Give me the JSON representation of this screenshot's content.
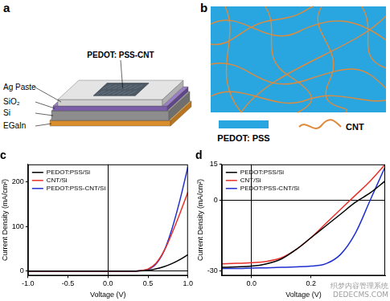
{
  "panels": {
    "a": {
      "label": "a",
      "layers": [
        "PEDOT: PSS-CNT",
        "Ag Paste",
        "SiO₂",
        "Si",
        "EGaIn"
      ]
    },
    "b": {
      "label": "b",
      "legend": [
        "PEDOT: PSS",
        "CNT"
      ]
    }
  },
  "chart_data": [
    {
      "type": "line",
      "title": "c",
      "x_label": "Voltage (V)",
      "y_label": "Current Density (mA/cm²)",
      "x": [
        -1,
        -0.5,
        0,
        0.3,
        0.4,
        0.5,
        0.6,
        0.7,
        0.8,
        0.9,
        1.0
      ],
      "series": [
        {
          "name": "PEDOT:PSS/Si",
          "color": "#000000",
          "values": [
            0,
            0,
            0,
            0,
            0.5,
            2,
            5,
            10,
            17,
            26,
            37
          ]
        },
        {
          "name": "CNT/Si",
          "color": "#e8302a",
          "values": [
            0,
            0,
            0,
            0,
            1,
            5,
            18,
            45,
            85,
            130,
            178
          ]
        },
        {
          "name": "PEDOT:PSS-CNT/Si",
          "color": "#1f2fd0",
          "values": [
            0,
            0,
            0,
            0,
            1,
            4,
            16,
            45,
            95,
            160,
            235
          ]
        }
      ],
      "xlim": [
        -1,
        1
      ],
      "xticks": [
        {
          "value": -1,
          "label": "-1.0"
        },
        {
          "value": -0.5,
          "label": "-0.5"
        },
        {
          "value": 0,
          "label": "0.0"
        },
        {
          "value": 0.5,
          "label": "0.5"
        },
        {
          "value": 1,
          "label": "1.0"
        }
      ],
      "ylim": [
        -10,
        240
      ],
      "yticks": [
        0,
        100,
        200
      ],
      "grid": false,
      "legend": "upper left",
      "marker": "none",
      "line_style": "solid"
    },
    {
      "type": "line",
      "title": "d",
      "x_label": "Voltage (V)",
      "y_label": "Current Density (mA/cm²)",
      "x": [
        -0.1,
        -0.05,
        0,
        0.05,
        0.1,
        0.15,
        0.2,
        0.25,
        0.3,
        0.35,
        0.4,
        0.45
      ],
      "series": [
        {
          "name": "PEDOT:PSS/Si",
          "color": "#000000",
          "values": [
            -28.5,
            -28.3,
            -28,
            -27,
            -25,
            -21,
            -16,
            -11,
            -6,
            -1,
            3,
            8
          ]
        },
        {
          "name": "CNT/Si",
          "color": "#e8302a",
          "values": [
            -27,
            -26.8,
            -26.5,
            -26,
            -24.5,
            -21,
            -16,
            -10,
            -4,
            2,
            8,
            15
          ]
        },
        {
          "name": "PEDOT:PSS-CNT/Si",
          "color": "#1f2fd0",
          "values": [
            -29,
            -29,
            -28.8,
            -28.7,
            -28.5,
            -28.3,
            -28,
            -27,
            -23,
            -14,
            0,
            14
          ]
        }
      ],
      "xlim": [
        -0.1,
        0.45
      ],
      "xticks": [
        {
          "value": 0,
          "label": "0.0"
        },
        {
          "value": 0.2,
          "label": "0.2"
        }
      ],
      "ylim": [
        -32,
        15
      ],
      "yticks": [
        -30,
        0,
        15
      ],
      "grid": false,
      "legend": "upper left",
      "marker": "none",
      "line_style": "solid"
    }
  ],
  "watermark": [
    "织梦内容管理系统",
    "DEDECMS.COM"
  ]
}
